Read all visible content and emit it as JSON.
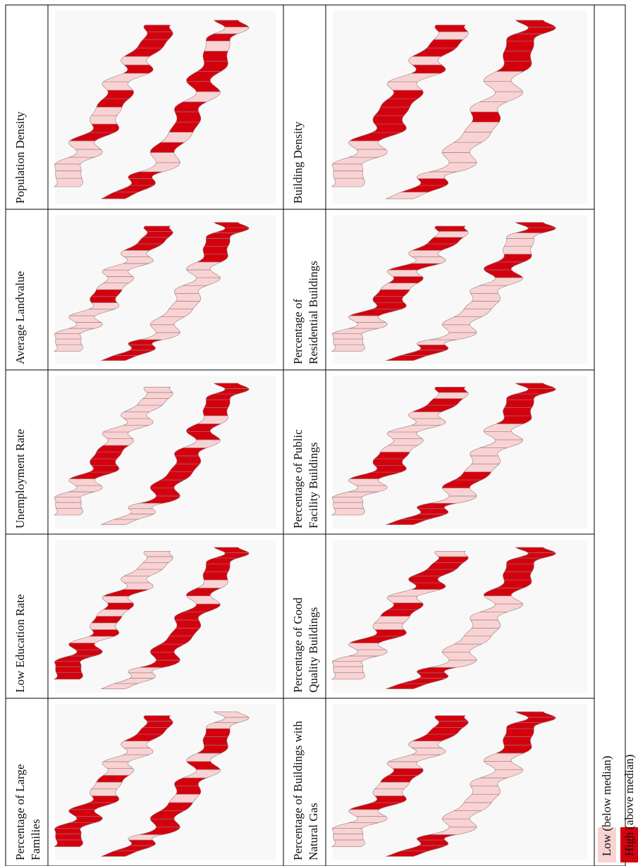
{
  "colors": {
    "low": "#f9d3d3",
    "high": "#d3000e",
    "border": "#000000",
    "map_background": "#f8f8f8",
    "region_outline": "#9a7d7d"
  },
  "panels": [
    {
      "id": "population-density",
      "lines": [
        "Population Density"
      ],
      "pattern": [
        0,
        0,
        0,
        0,
        0,
        0,
        1,
        1,
        0,
        0,
        1,
        1,
        0,
        0,
        1,
        0,
        1,
        1,
        1,
        1,
        1,
        1,
        1,
        1,
        0,
        0,
        1,
        0,
        1,
        1,
        1,
        0,
        1,
        1,
        1,
        1,
        0,
        1,
        0,
        1
      ]
    },
    {
      "id": "building-density",
      "lines": [
        "Building Density"
      ],
      "pattern": [
        0,
        0,
        0,
        0,
        0,
        0,
        1,
        1,
        1,
        1,
        1,
        1,
        0,
        0,
        1,
        0,
        1,
        1,
        0,
        1,
        0,
        1,
        1,
        0,
        0,
        0,
        0,
        0,
        0,
        1,
        0,
        0,
        0,
        0,
        1,
        1,
        1,
        1,
        1,
        1
      ]
    },
    {
      "id": "average-landvalue",
      "lines": [
        "Average Landvalue"
      ],
      "pattern": [
        0,
        0,
        0,
        0,
        0,
        0,
        0,
        0,
        1,
        1,
        0,
        0,
        0,
        0,
        0,
        0,
        1,
        1,
        1,
        1,
        1,
        1,
        1,
        1,
        0,
        0,
        0,
        0,
        0,
        0,
        0,
        0,
        0,
        0,
        1,
        1,
        1,
        1,
        1,
        1
      ]
    },
    {
      "id": "residential-buildings",
      "lines": [
        "Percentage of",
        "Residential Buildings"
      ],
      "pattern": [
        0,
        0,
        0,
        0,
        0,
        0,
        1,
        1,
        1,
        1,
        0,
        1,
        0,
        1,
        0,
        0,
        1,
        1,
        0,
        1,
        1,
        1,
        1,
        0,
        0,
        0,
        0,
        0,
        0,
        0,
        0,
        0,
        1,
        1,
        1,
        0,
        0,
        0,
        1,
        1
      ]
    },
    {
      "id": "unemployment-rate",
      "lines": [
        "Unemployment Rate"
      ],
      "pattern": [
        0,
        0,
        0,
        0,
        0,
        0,
        1,
        1,
        1,
        1,
        1,
        0,
        0,
        0,
        0,
        0,
        0,
        0,
        0,
        0,
        0,
        0,
        0,
        0,
        1,
        1,
        1,
        1,
        1,
        1,
        1,
        0,
        1,
        1,
        0,
        1,
        1,
        1,
        1,
        1
      ]
    },
    {
      "id": "public-facility-buildings",
      "lines": [
        "Percentage of Public",
        "Facility Buildings"
      ],
      "pattern": [
        0,
        0,
        0,
        0,
        0,
        0,
        1,
        1,
        1,
        1,
        0,
        0,
        0,
        0,
        0,
        0,
        1,
        1,
        0,
        1,
        1,
        1,
        1,
        1,
        0,
        0,
        1,
        1,
        0,
        0,
        0,
        0,
        0,
        0,
        1,
        1,
        1,
        1,
        1,
        1
      ]
    },
    {
      "id": "low-education-rate",
      "lines": [
        "Low Education Rate"
      ],
      "pattern": [
        1,
        1,
        1,
        1,
        1,
        1,
        0,
        1,
        0,
        1,
        0,
        1,
        0,
        1,
        0,
        0,
        0,
        0,
        0,
        0,
        0,
        0,
        0,
        0,
        1,
        1,
        1,
        1,
        1,
        1,
        1,
        1,
        0,
        1,
        0,
        1,
        1,
        1,
        1,
        1
      ]
    },
    {
      "id": "good-quality-buildings",
      "lines": [
        "Percentage of Good",
        "Quality Buildings"
      ],
      "pattern": [
        0,
        0,
        0,
        0,
        0,
        0,
        1,
        1,
        0,
        0,
        1,
        1,
        0,
        0,
        1,
        1,
        1,
        1,
        1,
        0,
        1,
        1,
        1,
        1,
        0,
        0,
        0,
        0,
        0,
        0,
        0,
        0,
        0,
        1,
        1,
        1,
        1,
        1,
        1,
        1
      ]
    },
    {
      "id": "large-families",
      "lines": [
        "Percentage of Large",
        "Families"
      ],
      "pattern": [
        1,
        1,
        1,
        1,
        1,
        1,
        1,
        1,
        0,
        0,
        1,
        0,
        0,
        0,
        0,
        0,
        1,
        1,
        1,
        1,
        1,
        1,
        1,
        0,
        1,
        1,
        1,
        1,
        0,
        1,
        1,
        0,
        1,
        0,
        1,
        1,
        1,
        0,
        0,
        0
      ]
    },
    {
      "id": "natural-gas-buildings",
      "lines": [
        "Percentage of Buildings with",
        "Natural Gas"
      ],
      "pattern": [
        0,
        0,
        0,
        0,
        0,
        0,
        1,
        1,
        0,
        0,
        1,
        1,
        0,
        0,
        0,
        0,
        1,
        1,
        1,
        1,
        1,
        1,
        1,
        1,
        0,
        0,
        0,
        0,
        0,
        0,
        0,
        0,
        0,
        0,
        1,
        1,
        1,
        1,
        1,
        1
      ]
    }
  ],
  "legend": {
    "low_label": "Low (below median)",
    "high_label": "High (above median)"
  }
}
